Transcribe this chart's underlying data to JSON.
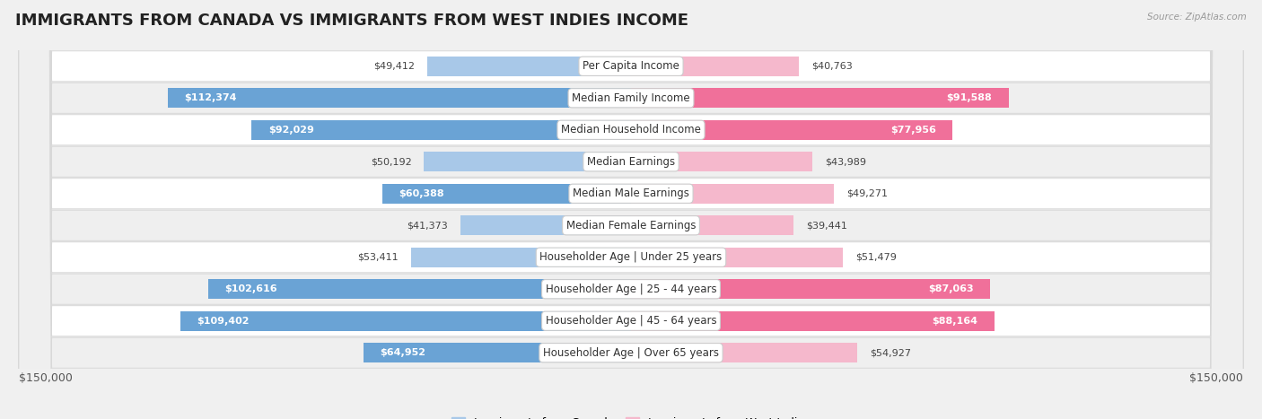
{
  "title": "IMMIGRANTS FROM CANADA VS IMMIGRANTS FROM WEST INDIES INCOME",
  "source": "Source: ZipAtlas.com",
  "categories": [
    "Per Capita Income",
    "Median Family Income",
    "Median Household Income",
    "Median Earnings",
    "Median Male Earnings",
    "Median Female Earnings",
    "Householder Age | Under 25 years",
    "Householder Age | 25 - 44 years",
    "Householder Age | 45 - 64 years",
    "Householder Age | Over 65 years"
  ],
  "canada_values": [
    49412,
    112374,
    92029,
    50192,
    60388,
    41373,
    53411,
    102616,
    109402,
    64952
  ],
  "west_indies_values": [
    40763,
    91588,
    77956,
    43989,
    49271,
    39441,
    51479,
    87063,
    88164,
    54927
  ],
  "canada_labels": [
    "$49,412",
    "$112,374",
    "$92,029",
    "$50,192",
    "$60,388",
    "$41,373",
    "$53,411",
    "$102,616",
    "$109,402",
    "$64,952"
  ],
  "west_indies_labels": [
    "$40,763",
    "$91,588",
    "$77,956",
    "$43,989",
    "$49,271",
    "$39,441",
    "$51,479",
    "$87,063",
    "$88,164",
    "$54,927"
  ],
  "canada_color_light": "#a8c8e8",
  "canada_color_dark": "#6aa3d5",
  "west_indies_color_light": "#f5b8cc",
  "west_indies_color_dark": "#f0709a",
  "max_value": 150000,
  "xlabel_left": "$150,000",
  "xlabel_right": "$150,000",
  "legend_canada": "Immigrants from Canada",
  "legend_west_indies": "Immigrants from West Indies",
  "background_color": "#f0f0f0",
  "row_bg_colors": [
    "#ffffff",
    "#efefef"
  ],
  "row_border_color": "#d8d8d8",
  "title_fontsize": 13,
  "cat_label_fontsize": 8.5,
  "value_fontsize": 8,
  "inside_label_threshold": 55000
}
